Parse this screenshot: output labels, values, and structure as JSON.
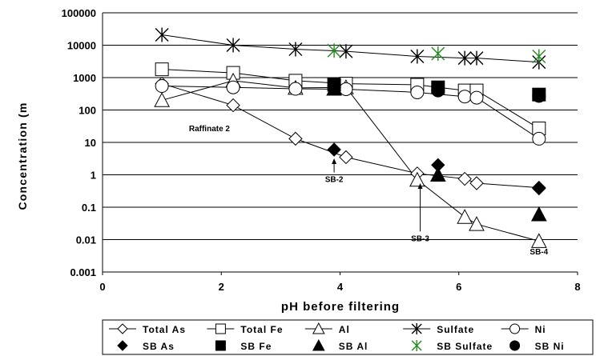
{
  "chart_data": {
    "type": "scatter",
    "xlabel": "pH before filtering",
    "ylabel": "Concentration (m",
    "xlim": [
      0,
      8
    ],
    "ylim": [
      0.001,
      100000
    ],
    "yscale": "log",
    "grid": "horizontal",
    "legend_position": "bottom",
    "x_ticks": [
      0,
      2,
      4,
      6,
      8
    ],
    "x_tick_labels": [
      "0",
      "2",
      "4",
      "6",
      "8"
    ],
    "y_ticks": [
      0.001,
      0.01,
      0.1,
      1,
      10,
      100,
      1000,
      10000,
      100000
    ],
    "y_tick_labels": [
      "0.001",
      "0.01",
      "0.1",
      "1",
      "10",
      "100",
      "1000",
      "10000",
      "100000"
    ],
    "series": [
      {
        "name": "Total As",
        "marker": "diamond-open",
        "line": true,
        "x": [
          1.0,
          2.2,
          3.25,
          4.1,
          5.3,
          6.1,
          6.3,
          7.35
        ],
        "y": [
          650,
          140,
          13,
          3.5,
          1.1,
          0.75,
          0.55,
          0.4
        ]
      },
      {
        "name": "Total Fe",
        "marker": "square-open",
        "line": true,
        "x": [
          1.0,
          2.2,
          3.25,
          4.1,
          5.3,
          6.1,
          6.3,
          7.35
        ],
        "y": [
          1800,
          1400,
          800,
          650,
          600,
          400,
          400,
          27
        ]
      },
      {
        "name": "Al",
        "marker": "triangle-open",
        "line": true,
        "x": [
          1.0,
          2.2,
          3.25,
          4.1,
          5.3,
          6.1,
          6.3,
          7.35
        ],
        "y": [
          200,
          800,
          480,
          500,
          0.7,
          0.05,
          0.03,
          0.009
        ]
      },
      {
        "name": "Sulfate",
        "marker": "asterisk",
        "line": true,
        "x": [
          1.0,
          2.2,
          3.25,
          4.1,
          5.3,
          6.1,
          6.3,
          7.35
        ],
        "y": [
          21000,
          10000,
          7500,
          6500,
          4500,
          4000,
          4000,
          3000
        ]
      },
      {
        "name": "Ni",
        "marker": "circle-open",
        "line": true,
        "x": [
          1.0,
          2.2,
          3.25,
          4.1,
          5.3,
          6.1,
          6.3,
          7.35
        ],
        "y": [
          550,
          500,
          450,
          440,
          350,
          260,
          240,
          13
        ]
      },
      {
        "name": "SB As",
        "marker": "diamond-filled",
        "line": false,
        "x": [
          3.9,
          5.65,
          7.35
        ],
        "y": [
          6,
          2,
          0.38
        ]
      },
      {
        "name": "SB Fe",
        "marker": "square-filled",
        "line": false,
        "x": [
          3.9,
          5.65,
          7.35
        ],
        "y": [
          600,
          500,
          300
        ]
      },
      {
        "name": "SB Al",
        "marker": "triangle-filled",
        "line": false,
        "x": [
          3.9,
          5.65,
          7.35
        ],
        "y": [
          450,
          1.0,
          0.06
        ]
      },
      {
        "name": "SB Sulfate",
        "marker": "asterisk-green",
        "line": false,
        "x": [
          3.9,
          5.65,
          7.35
        ],
        "y": [
          6800,
          5500,
          4500
        ]
      },
      {
        "name": "SB Ni",
        "marker": "circle-filled",
        "line": false,
        "x": [
          3.9,
          5.65,
          7.35
        ],
        "y": [
          480,
          400,
          270
        ]
      }
    ],
    "annotations": [
      {
        "text": "Raffinate 2",
        "x": 1.8,
        "y": 22,
        "arrow": false
      },
      {
        "text": "SB-2",
        "x": 3.9,
        "y": 0.6,
        "arrow": true,
        "arrow_to_y": 3.2
      },
      {
        "text": "SB-3",
        "x": 5.35,
        "y": 0.009,
        "arrow": true,
        "arrow_to_y": 0.55
      },
      {
        "text": "SB-4",
        "x": 7.35,
        "y": 0.0035,
        "arrow": false
      }
    ],
    "colors": {
      "series": "#000000",
      "sb_sulfate": "#228B22",
      "grid": "#000000",
      "axis": "#000000"
    }
  }
}
